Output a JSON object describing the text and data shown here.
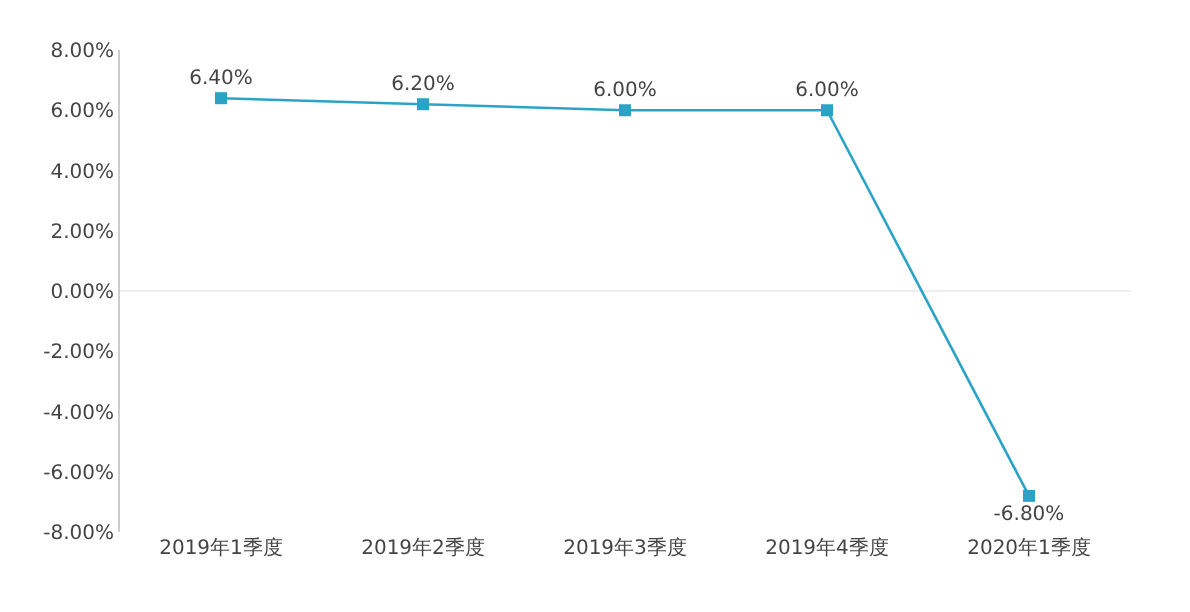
{
  "chart_data": {
    "type": "line",
    "categories": [
      "2019年1季度",
      "2019年2季度",
      "2019年3季度",
      "2019年4季度",
      "2020年1季度"
    ],
    "series": [
      {
        "color": "#2ba3c6",
        "values": [
          6.4,
          6.2,
          6.0,
          6.0,
          -6.8
        ],
        "value_labels": [
          "6.40%",
          "6.20%",
          "6.00%",
          "6.00%",
          "-6.80%"
        ]
      }
    ],
    "ylim": [
      -8,
      8
    ],
    "yticks": [
      {
        "value": -8,
        "label": "-8.00%"
      },
      {
        "value": -6,
        "label": "-6.00%"
      },
      {
        "value": -4,
        "label": "-4.00%"
      },
      {
        "value": -2,
        "label": "-2.00%"
      },
      {
        "value": 0,
        "label": "0.00%"
      },
      {
        "value": 2,
        "label": "2.00%"
      },
      {
        "value": 4,
        "label": "4.00%"
      },
      {
        "value": 6,
        "label": "6.00%"
      },
      {
        "value": 8,
        "label": "8.00%"
      }
    ],
    "ref_lines": [
      {
        "axis": "y",
        "value": 0,
        "color": "#eeeeee"
      }
    ],
    "grid": false,
    "marker": "square",
    "line_style": "solid"
  }
}
